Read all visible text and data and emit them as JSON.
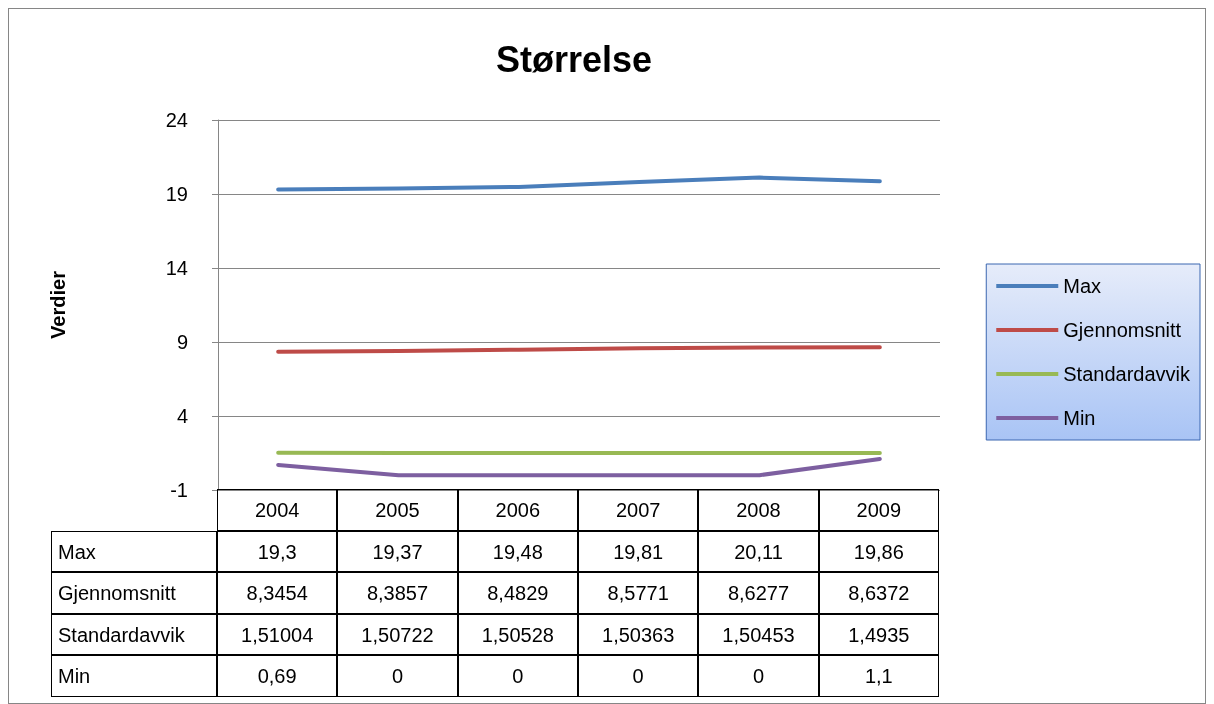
{
  "chart_data": {
    "type": "line",
    "title": "Størrelse",
    "ylabel": "Verdier",
    "categories": [
      "2004",
      "2005",
      "2006",
      "2007",
      "2008",
      "2009"
    ],
    "series": [
      {
        "name": "Max",
        "color": "#4a7ebb",
        "values": [
          19.3,
          19.37,
          19.48,
          19.81,
          20.11,
          19.86
        ],
        "value_labels": [
          "19,3",
          "19,37",
          "19,48",
          "19,81",
          "20,11",
          "19,86"
        ]
      },
      {
        "name": "Gjennomsnitt",
        "color": "#be4b48",
        "values": [
          8.3454,
          8.3857,
          8.4829,
          8.5771,
          8.6277,
          8.6372
        ],
        "value_labels": [
          "8,3454",
          "8,3857",
          "8,4829",
          "8,5771",
          "8,6277",
          "8,6372"
        ]
      },
      {
        "name": "Standardavvik",
        "color": "#98b954",
        "values": [
          1.51004,
          1.50722,
          1.50528,
          1.50363,
          1.50453,
          1.4935
        ],
        "value_labels": [
          "1,51004",
          "1,50722",
          "1,50528",
          "1,50363",
          "1,50453",
          "1,4935"
        ]
      },
      {
        "name": "Min",
        "color": "#7d5fa0",
        "values": [
          0.69,
          0,
          0,
          0,
          0,
          1.1
        ],
        "value_labels": [
          "0,69",
          "0",
          "0",
          "0",
          "0",
          "1,1"
        ]
      }
    ],
    "ylim": [
      -1,
      24
    ],
    "yticks": [
      -1,
      4,
      9,
      14,
      19,
      24
    ],
    "grid": "y",
    "legend": "right",
    "marker": "none",
    "line_style": "solid"
  }
}
